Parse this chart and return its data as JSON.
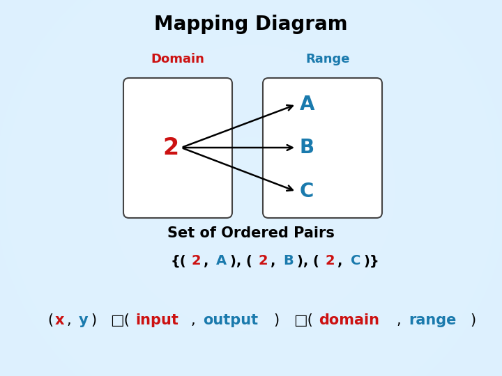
{
  "title": "Mapping Diagram",
  "title_fontsize": 20,
  "title_color": "#000000",
  "domain_label": "Domain",
  "range_label": "Range",
  "domain_color": "#cc1111",
  "range_color": "#1a7aad",
  "domain_value": "2",
  "range_values": [
    "A",
    "B",
    "C"
  ],
  "set_label": "Set of Ordered Pairs",
  "bg_left": "#daeef8",
  "bg_right": "#eaf6fc",
  "bg_center": "#f0f8ff",
  "pairs_segments": [
    [
      "{(",
      "#000000",
      true
    ],
    [
      "2",
      "#cc1111",
      true
    ],
    [
      ", ",
      "#000000",
      true
    ],
    [
      "A",
      "#1a7aad",
      true
    ],
    [
      "), (",
      "#000000",
      true
    ],
    [
      "2",
      "#cc1111",
      true
    ],
    [
      ", ",
      "#000000",
      true
    ],
    [
      "B",
      "#1a7aad",
      true
    ],
    [
      "), (",
      "#000000",
      true
    ],
    [
      "2",
      "#cc1111",
      true
    ],
    [
      ", ",
      "#000000",
      true
    ],
    [
      "C",
      "#1a7aad",
      true
    ],
    [
      ")}",
      "#000000",
      true
    ]
  ],
  "bottom_segments": [
    [
      "(",
      "#000000",
      false
    ],
    [
      "x",
      "#cc1111",
      true
    ],
    [
      ", ",
      "#000000",
      false
    ],
    [
      "y",
      "#1a7aad",
      true
    ],
    [
      ")  ",
      "#000000",
      false
    ],
    [
      "□(",
      "#000000",
      false
    ],
    [
      "input",
      "#cc1111",
      true
    ],
    [
      ", ",
      "#000000",
      false
    ],
    [
      "output",
      "#1a7aad",
      true
    ],
    [
      ")  ",
      "#000000",
      false
    ],
    [
      "□(",
      "#000000",
      false
    ],
    [
      "domain",
      "#cc1111",
      true
    ],
    [
      ", ",
      "#000000",
      false
    ],
    [
      "range",
      "#1a7aad",
      true
    ],
    [
      ")",
      "#000000",
      false
    ]
  ]
}
